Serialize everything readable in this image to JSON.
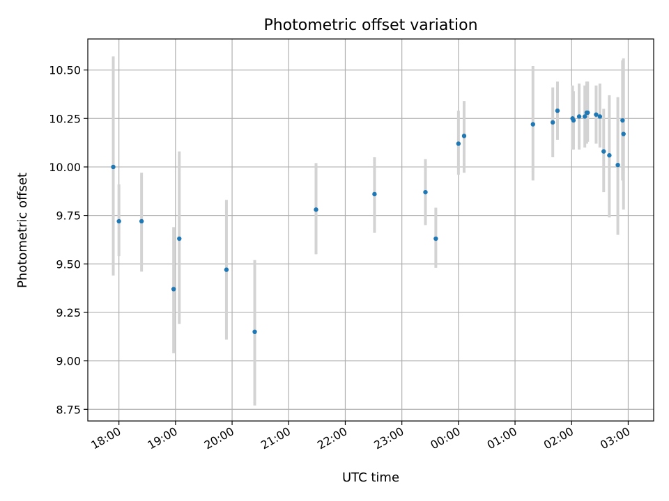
{
  "chart_data": {
    "type": "scatter",
    "title": "Photometric offset variation",
    "xlabel": "UTC time",
    "ylabel": "Photometric offset",
    "x_unit": "UTC time (HH:MM), midnight rollover between 23:00 and 00:00",
    "xlim": [
      "17:27",
      "03:27"
    ],
    "ylim": [
      8.69,
      10.66
    ],
    "x_ticks": [
      "18:00",
      "19:00",
      "20:00",
      "21:00",
      "22:00",
      "23:00",
      "00:00",
      "01:00",
      "02:00",
      "03:00"
    ],
    "y_ticks": [
      8.75,
      9.0,
      9.25,
      9.5,
      9.75,
      10.0,
      10.25,
      10.5
    ],
    "y_tick_labels": [
      "8.75",
      "9.00",
      "9.25",
      "9.50",
      "9.75",
      "10.00",
      "10.25",
      "10.50"
    ],
    "grid": true,
    "marker_color": "#1f77b4",
    "errorbar_color": "#d3d3d3",
    "points": [
      {
        "x": "17:54",
        "y": 10.0,
        "ylow": 9.44,
        "yhigh": 10.57
      },
      {
        "x": "18:00",
        "y": 9.72,
        "ylow": 9.54,
        "yhigh": 9.91
      },
      {
        "x": "18:24",
        "y": 9.72,
        "ylow": 9.46,
        "yhigh": 9.97
      },
      {
        "x": "18:58",
        "y": 9.37,
        "ylow": 9.04,
        "yhigh": 9.69
      },
      {
        "x": "19:04",
        "y": 9.63,
        "ylow": 9.19,
        "yhigh": 10.08
      },
      {
        "x": "19:54",
        "y": 9.47,
        "ylow": 9.11,
        "yhigh": 9.83
      },
      {
        "x": "20:24",
        "y": 9.15,
        "ylow": 8.77,
        "yhigh": 9.52
      },
      {
        "x": "21:29",
        "y": 9.78,
        "ylow": 9.55,
        "yhigh": 10.02
      },
      {
        "x": "22:31",
        "y": 9.86,
        "ylow": 9.66,
        "yhigh": 10.05
      },
      {
        "x": "23:25",
        "y": 9.87,
        "ylow": 9.7,
        "yhigh": 10.04
      },
      {
        "x": "23:36",
        "y": 9.63,
        "ylow": 9.48,
        "yhigh": 9.79
      },
      {
        "x": "00:00",
        "y": 10.12,
        "ylow": 9.96,
        "yhigh": 10.29
      },
      {
        "x": "00:06",
        "y": 10.16,
        "ylow": 9.97,
        "yhigh": 10.34
      },
      {
        "x": "01:19",
        "y": 10.22,
        "ylow": 9.93,
        "yhigh": 10.52
      },
      {
        "x": "01:40",
        "y": 10.23,
        "ylow": 10.05,
        "yhigh": 10.41
      },
      {
        "x": "01:45",
        "y": 10.29,
        "ylow": 10.14,
        "yhigh": 10.44
      },
      {
        "x": "02:01",
        "y": 10.25,
        "ylow": 10.09,
        "yhigh": 10.42
      },
      {
        "x": "02:02",
        "y": 10.24,
        "ylow": 10.09,
        "yhigh": 10.39
      },
      {
        "x": "02:08",
        "y": 10.26,
        "ylow": 10.09,
        "yhigh": 10.43
      },
      {
        "x": "02:14",
        "y": 10.26,
        "ylow": 10.1,
        "yhigh": 10.42
      },
      {
        "x": "02:16",
        "y": 10.28,
        "ylow": 10.12,
        "yhigh": 10.44
      },
      {
        "x": "02:17",
        "y": 10.28,
        "ylow": 10.13,
        "yhigh": 10.44
      },
      {
        "x": "02:26",
        "y": 10.27,
        "ylow": 10.12,
        "yhigh": 10.42
      },
      {
        "x": "02:30",
        "y": 10.26,
        "ylow": 10.1,
        "yhigh": 10.43
      },
      {
        "x": "02:34",
        "y": 10.08,
        "ylow": 9.87,
        "yhigh": 10.3
      },
      {
        "x": "02:40",
        "y": 10.06,
        "ylow": 9.74,
        "yhigh": 10.37
      },
      {
        "x": "02:49",
        "y": 10.01,
        "ylow": 9.65,
        "yhigh": 10.36
      },
      {
        "x": "02:54",
        "y": 10.24,
        "ylow": 9.93,
        "yhigh": 10.55
      },
      {
        "x": "02:55",
        "y": 10.17,
        "ylow": 9.78,
        "yhigh": 10.56
      }
    ]
  }
}
